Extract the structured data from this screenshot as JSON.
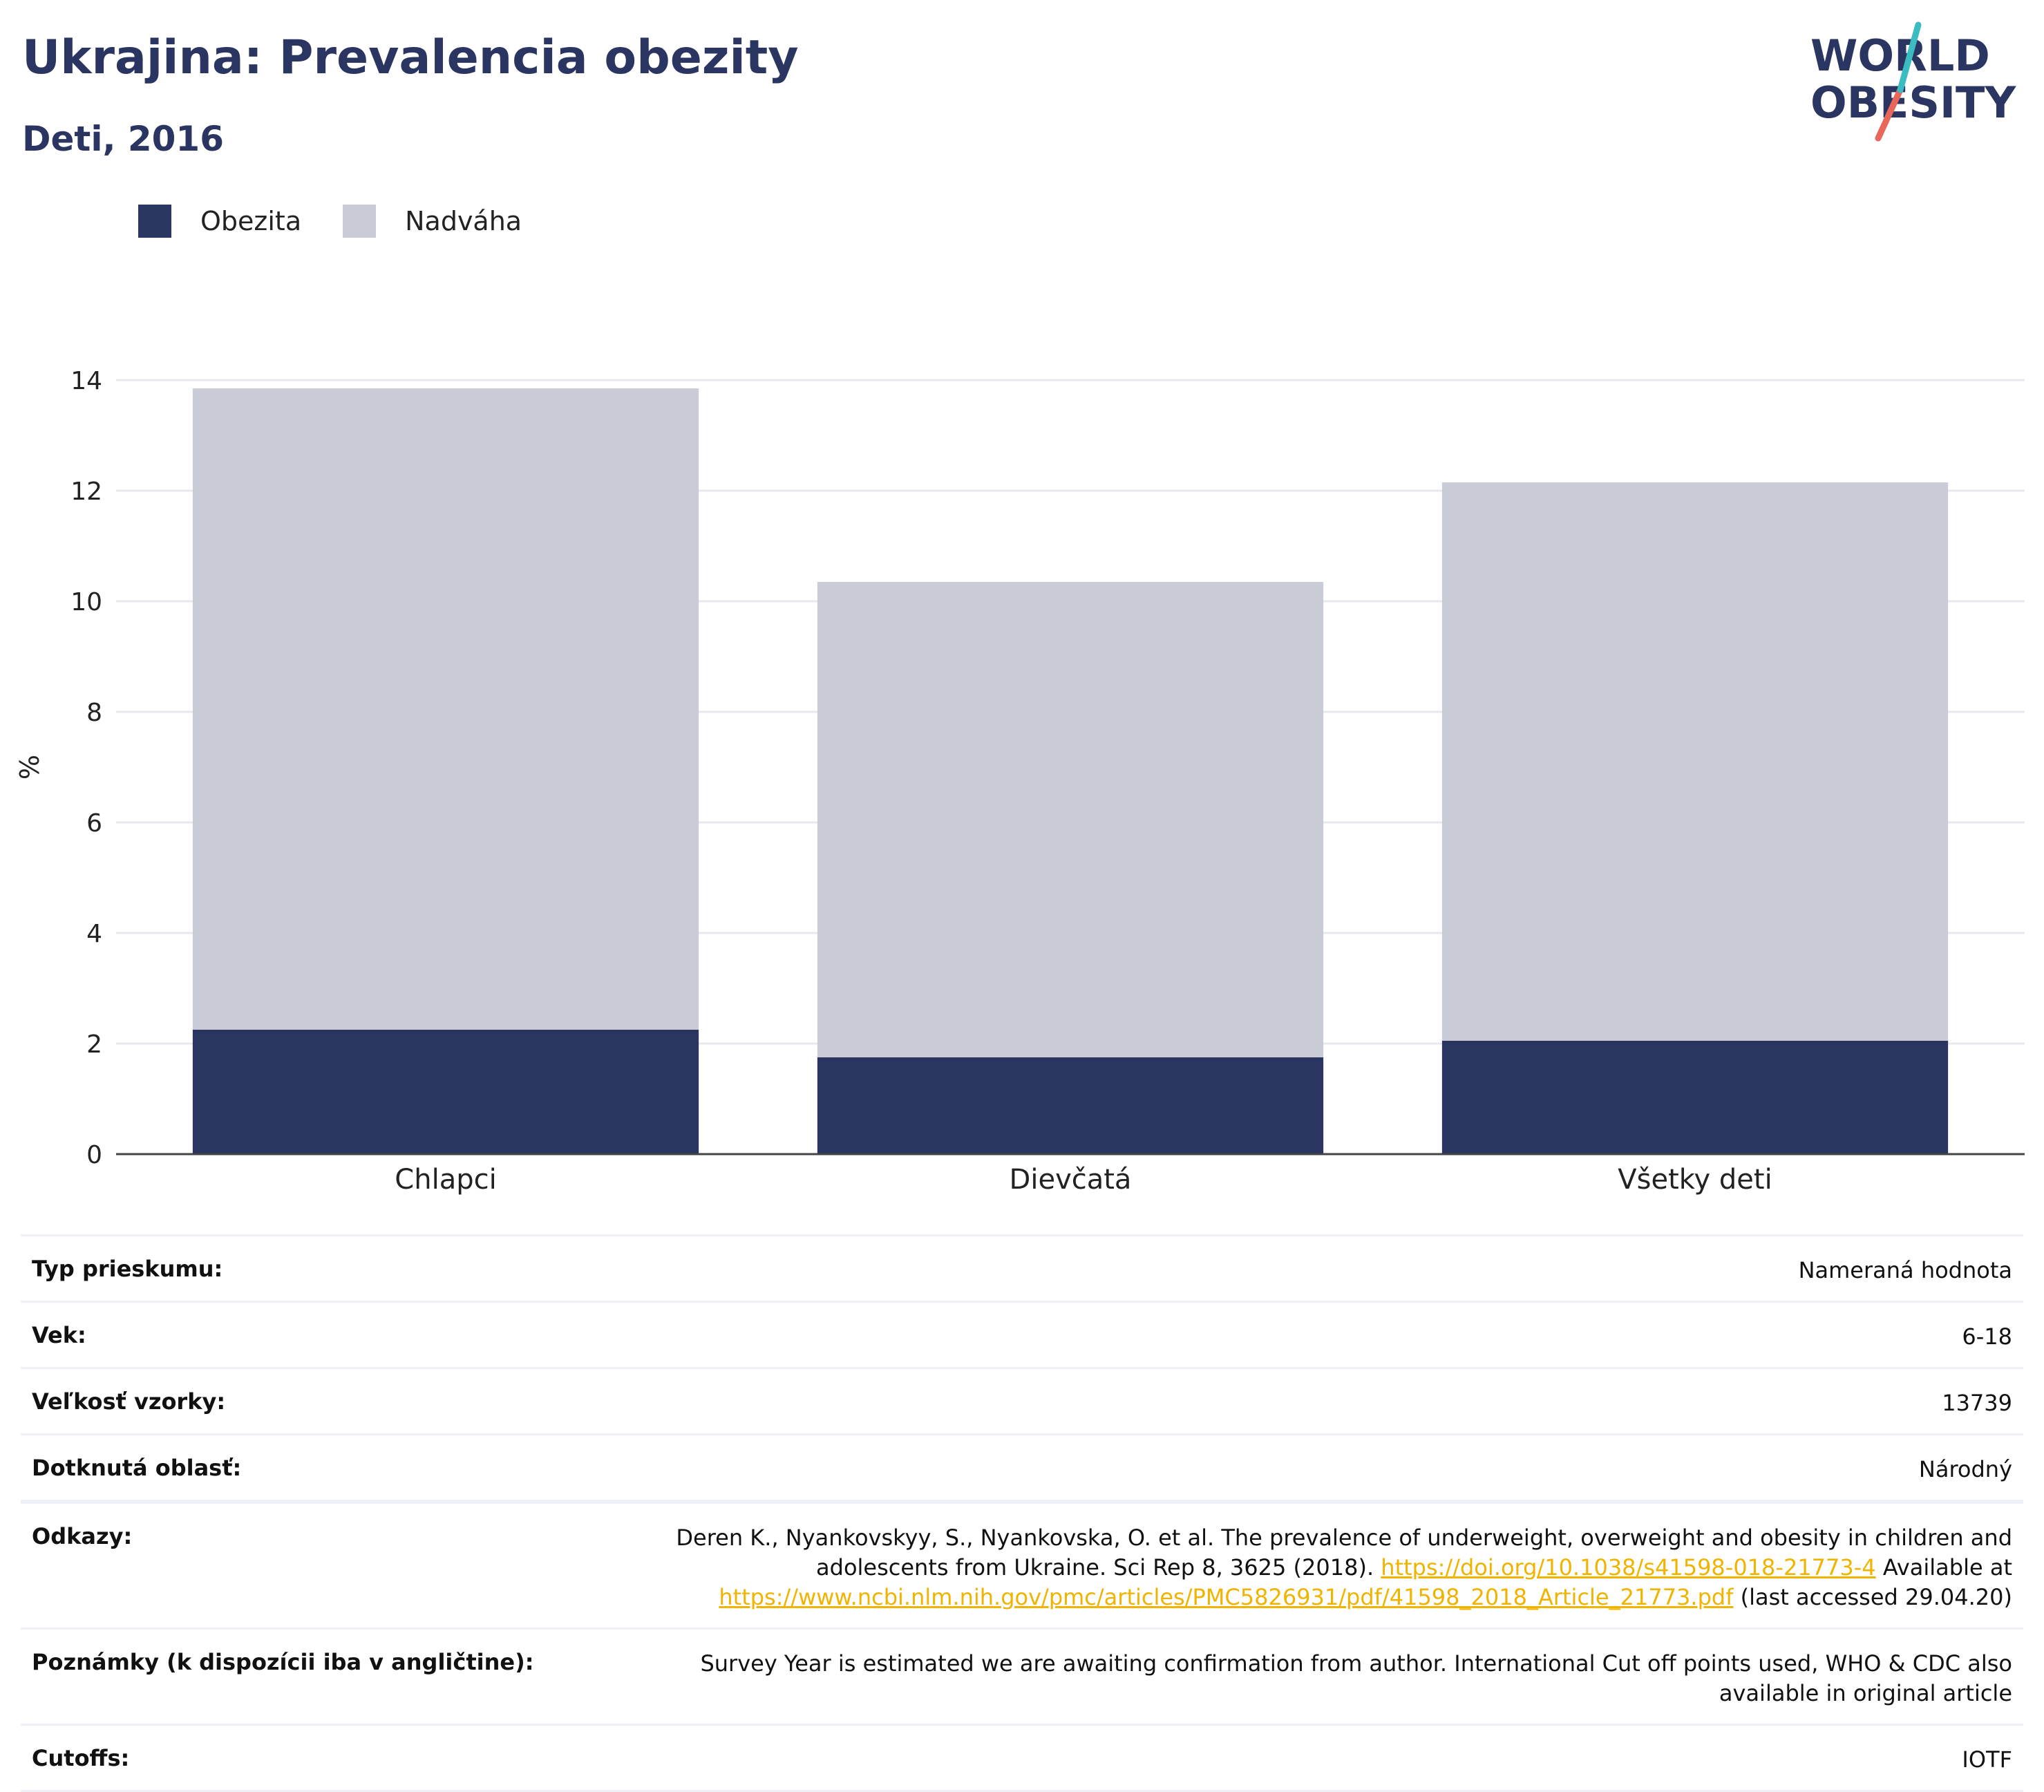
{
  "header": {
    "title": "Ukrajina: Prevalencia obezity",
    "subtitle": "Deti, 2016"
  },
  "logo": {
    "line1": "WORLD",
    "line2": "OBESITY"
  },
  "legend": [
    {
      "label": "Obezita",
      "color": "#2b3561"
    },
    {
      "label": "Nadváha",
      "color": "#c9cbd7"
    }
  ],
  "chart_data": {
    "type": "bar",
    "stacked": true,
    "categories": [
      "Chlapci",
      "Dievčatá",
      "Všetky deti"
    ],
    "series": [
      {
        "name": "Obezita",
        "values": [
          2.25,
          1.75,
          2.05
        ],
        "color": "#2b3561"
      },
      {
        "name": "Nadváha",
        "values": [
          11.6,
          8.6,
          10.1
        ],
        "color": "#c9cbd7"
      }
    ],
    "ylabel": "%",
    "ylim": [
      0,
      14
    ],
    "yticks": [
      0,
      2,
      4,
      6,
      8,
      10,
      12,
      14
    ],
    "grid": true
  },
  "meta": {
    "rows": [
      {
        "label": "Typ prieskumu:",
        "value": "Nameraná hodnota"
      },
      {
        "label": "Vek:",
        "value": "6-18"
      },
      {
        "label": "Veľkosť vzorky:",
        "value": "13739"
      },
      {
        "label": "Dotknutá oblasť:",
        "value": "Národný"
      }
    ],
    "references": {
      "label": "Odkazy:",
      "text1": "Deren K., Nyankovskyy, S., Nyankovska, O. et al. The prevalence of underweight, overweight and obesity in children and adolescents from Ukraine. Sci Rep 8, 3625 (2018).",
      "link1": "https://doi.org/10.1038/s41598-018-21773-4",
      "text2": "Available at",
      "link2": "https://www.ncbi.nlm.nih.gov/pmc/articles/PMC5826931/pdf/41598_2018_Article_21773.pdf",
      "text3": "(last accessed 29.04.20)"
    },
    "notes": {
      "label": "Poznámky (k dispozícii iba v angličtine):",
      "value": "Survey Year is estimated we are awaiting confirmation from author. International Cut off points used, WHO & CDC also available in original article"
    },
    "cutoffs": {
      "label": "Cutoffs:",
      "value": "IOTF"
    }
  }
}
